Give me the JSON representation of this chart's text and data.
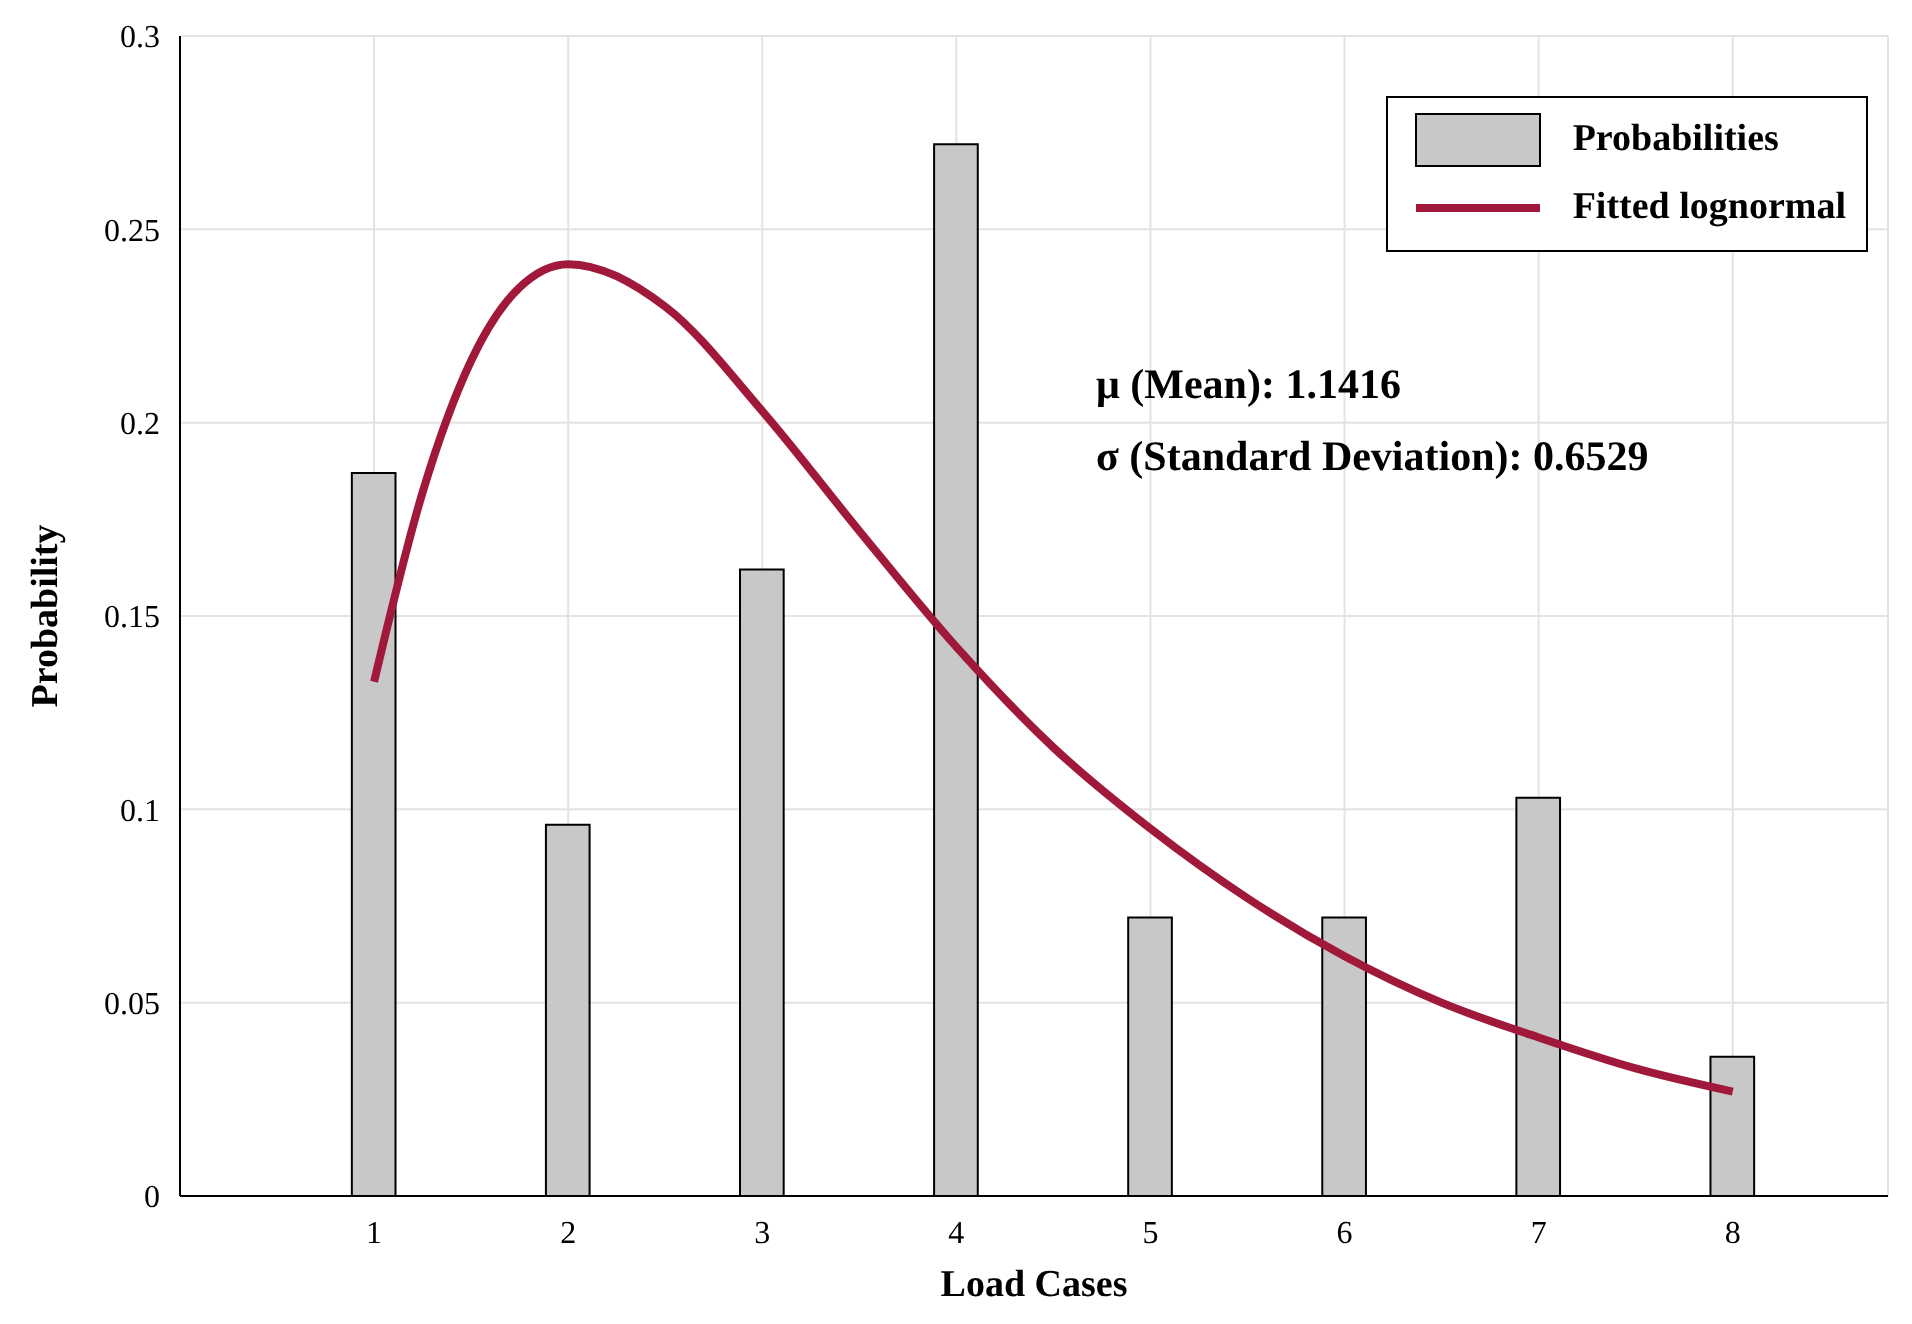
{
  "chart_data": {
    "type": "bar",
    "xlabel": "Load Cases",
    "ylabel": "Probability",
    "x": [
      1,
      2,
      3,
      4,
      5,
      6,
      7,
      8
    ],
    "xlim": [
      0,
      8.8
    ],
    "xticks": [
      1,
      2,
      3,
      4,
      5,
      6,
      7,
      8
    ],
    "ylim": [
      0,
      0.3
    ],
    "yticks": [
      0,
      0.05,
      0.1,
      0.15,
      0.2,
      0.25,
      0.3
    ],
    "grid": true,
    "legend": "top right",
    "marker": "none",
    "line_style": "solid",
    "series": [
      {
        "name": "Probabilities",
        "color": "#c8c8c8",
        "values": [
          0.187,
          0.096,
          0.162,
          0.272,
          0.072,
          0.072,
          0.103,
          0.036
        ]
      },
      {
        "name": "Fitted lognormal",
        "type": "line",
        "color": "#a0193a",
        "x": [
          1,
          1.25,
          1.5,
          1.75,
          2,
          2.5,
          3,
          3.5,
          4,
          4.5,
          5,
          5.5,
          6,
          6.5,
          7,
          7.5,
          8
        ],
        "values": [
          0.133,
          0.182,
          0.216,
          0.235,
          0.241,
          0.23,
          0.203,
          0.172,
          0.142,
          0.116,
          0.095,
          0.077,
          0.062,
          0.05,
          0.041,
          0.033,
          0.027
        ]
      }
    ],
    "annotations": [
      "μ (Mean): 1.1416",
      "σ (Standard Deviation): 0.6529"
    ]
  }
}
